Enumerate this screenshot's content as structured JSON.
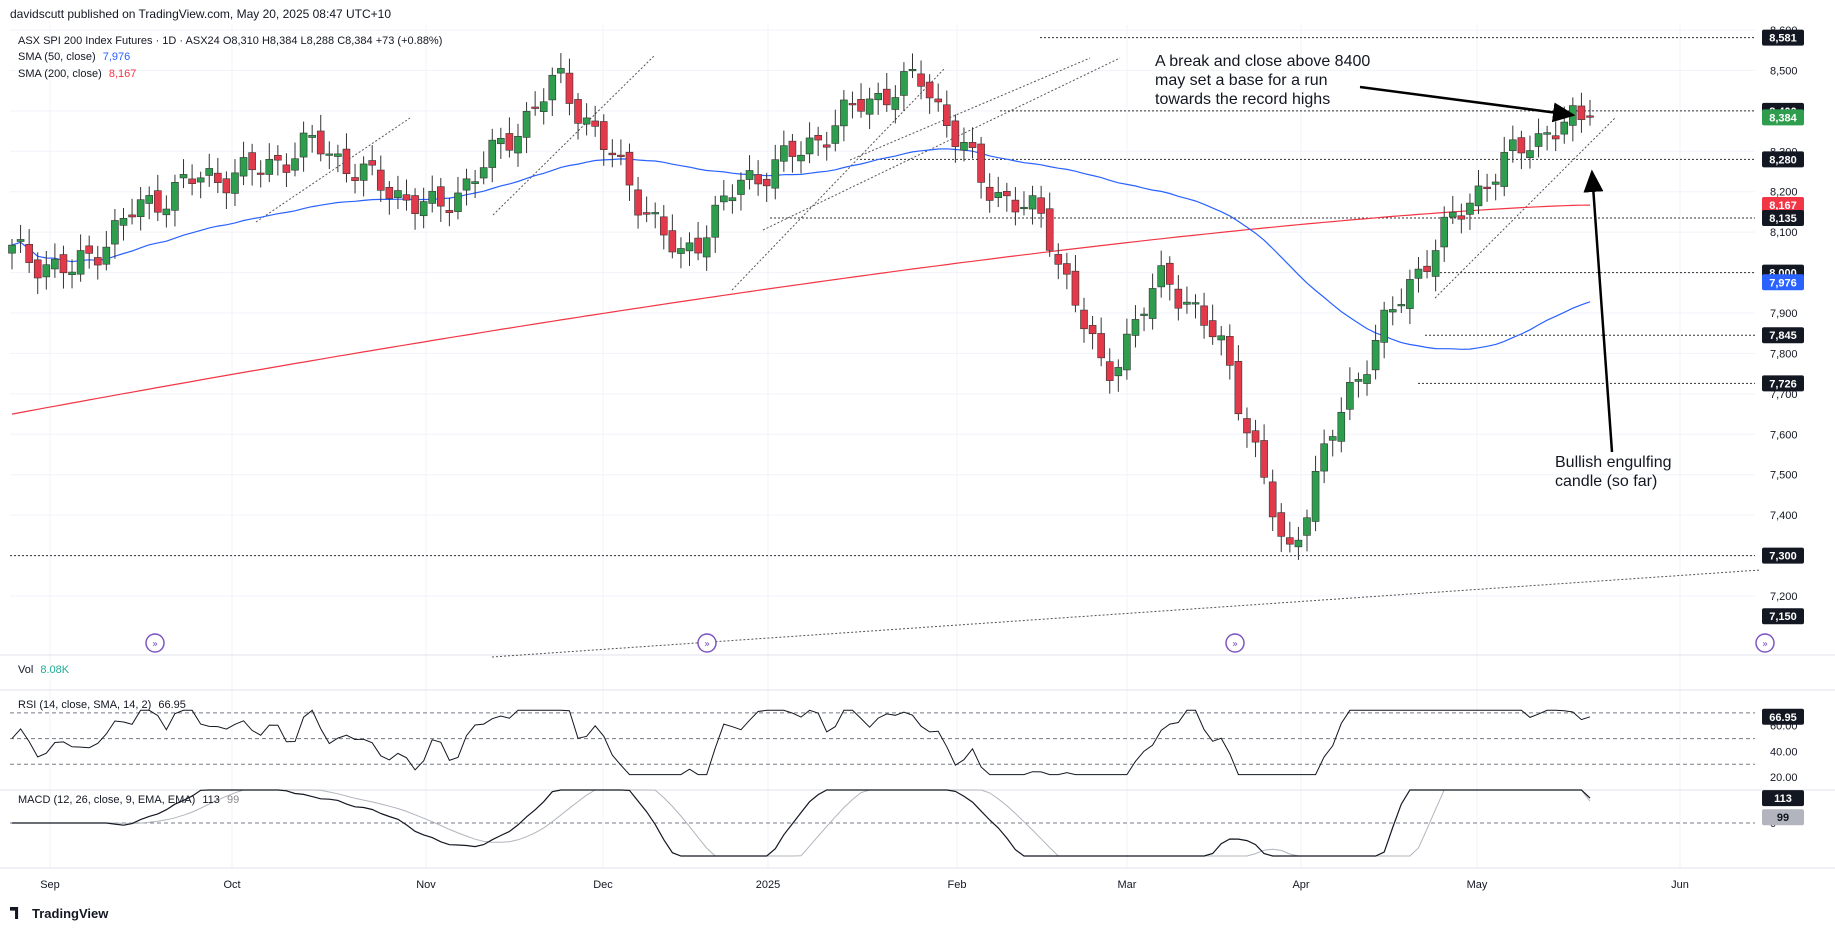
{
  "header": {
    "published": "davidscutt published on TradingView.com, May 20, 2025 08:47 UTC+10",
    "symbol_line": "ASX SPI 200 Index Futures · 1D · ASX24  O8,310  H8,384  L8,288  C8,384  +73 (+0.88%)",
    "sma50_label": "SMA (50, close)",
    "sma50_value": "7,976",
    "sma200_label": "SMA (200, close)",
    "sma200_value": "8,167"
  },
  "colors": {
    "up": "#2e9e4e",
    "down": "#e23a4b",
    "sma50": "#2962ff",
    "sma200": "#f23645",
    "grid": "#f0f3fa",
    "axis_text": "#131722",
    "badge_dark": "#131722",
    "annot_arrow": "#000000"
  },
  "annotations": {
    "top": [
      "A break and close above 8400",
      "may set a base for a run",
      "towards the record highs"
    ],
    "bottom": [
      "Bullish engulfing",
      "candle (so far)"
    ]
  },
  "panels": {
    "vol_label": "Vol",
    "vol_value": "8.08K",
    "rsi_label": "RSI (14, close, SMA, 14, 2)",
    "rsi_value": "66.95",
    "macd_label": "MACD (12, 26, close, 9, EMA, EMA)",
    "macd_value": "113",
    "macd_signal_value": "99"
  },
  "branding": "TradingView",
  "chart_data": {
    "type": "candlestick",
    "title": "ASX SPI 200 Index Futures · 1D · ASX24",
    "x_tick_labels": [
      "Sep",
      "Oct",
      "Nov",
      "Dec",
      "2025",
      "Feb",
      "Mar",
      "Apr",
      "May",
      "Jun"
    ],
    "y_tick_labels": [
      "7,200",
      "7,300",
      "7,400",
      "7,500",
      "7,600",
      "7,700",
      "7,800",
      "7,900",
      "8,000",
      "8,100",
      "8,200",
      "8,300",
      "8,400",
      "8,500",
      "8,600"
    ],
    "ylim": [
      7150,
      8620
    ],
    "price_badges": [
      {
        "value": 8581,
        "label": "8,581",
        "style": "dark"
      },
      {
        "value": 8400,
        "label": "8,400",
        "style": "dark"
      },
      {
        "value": 8384,
        "label": "8,384",
        "style": "up"
      },
      {
        "value": 8280,
        "label": "8,280",
        "style": "dark"
      },
      {
        "value": 8167,
        "label": "8,167",
        "style": "sma200"
      },
      {
        "value": 8135,
        "label": "8,135",
        "style": "dark"
      },
      {
        "value": 8000,
        "label": "8,000",
        "style": "dark"
      },
      {
        "value": 7976,
        "label": "7,976",
        "style": "sma50"
      },
      {
        "value": 7845,
        "label": "7,845",
        "style": "dark"
      },
      {
        "value": 7726,
        "label": "7,726",
        "style": "dark"
      },
      {
        "value": 7300,
        "label": "7,300",
        "style": "dark"
      },
      {
        "value": 7150,
        "label": "7,150",
        "style": "dark"
      }
    ],
    "closes_month_anchors": [
      {
        "month": "Aug",
        "close": 8050
      },
      {
        "month": "Sep",
        "close": 8000
      },
      {
        "month": "Sep-mid",
        "close": 8150
      },
      {
        "month": "Sep-end",
        "close": 8230
      },
      {
        "month": "Oct",
        "close": 8250
      },
      {
        "month": "Oct-mid",
        "close": 8320
      },
      {
        "month": "Oct-end",
        "close": 8220
      },
      {
        "month": "Nov",
        "close": 8150
      },
      {
        "month": "Nov-mid",
        "close": 8300
      },
      {
        "month": "Dec",
        "close": 8480
      },
      {
        "month": "Dec-mid",
        "close": 8260
      },
      {
        "month": "Dec-late",
        "close": 8030
      },
      {
        "month": "Jan",
        "close": 8220
      },
      {
        "month": "Jan-mid",
        "close": 8300
      },
      {
        "month": "Feb",
        "close": 8420
      },
      {
        "month": "Feb-mid",
        "close": 8480
      },
      {
        "month": "Feb-end",
        "close": 8220
      },
      {
        "month": "Mar",
        "close": 8130
      },
      {
        "month": "Mar-mid",
        "close": 7740
      },
      {
        "month": "Mar-end",
        "close": 8000
      },
      {
        "month": "Apr",
        "close": 7800
      },
      {
        "month": "Apr-low",
        "close": 7290
      },
      {
        "month": "Apr-mid",
        "close": 7700
      },
      {
        "month": "Apr-end",
        "close": 7970
      },
      {
        "month": "May",
        "close": 8180
      },
      {
        "month": "May-mid",
        "close": 8330
      },
      {
        "month": "May-20",
        "close": 8384
      }
    ],
    "rsi": {
      "value": 66.95,
      "levels": [
        70,
        50,
        30
      ],
      "ticks": [
        "60.00",
        "40.00",
        "20.00"
      ]
    },
    "macd": {
      "macd": 113,
      "signal": 99,
      "zero_label": "0"
    }
  }
}
